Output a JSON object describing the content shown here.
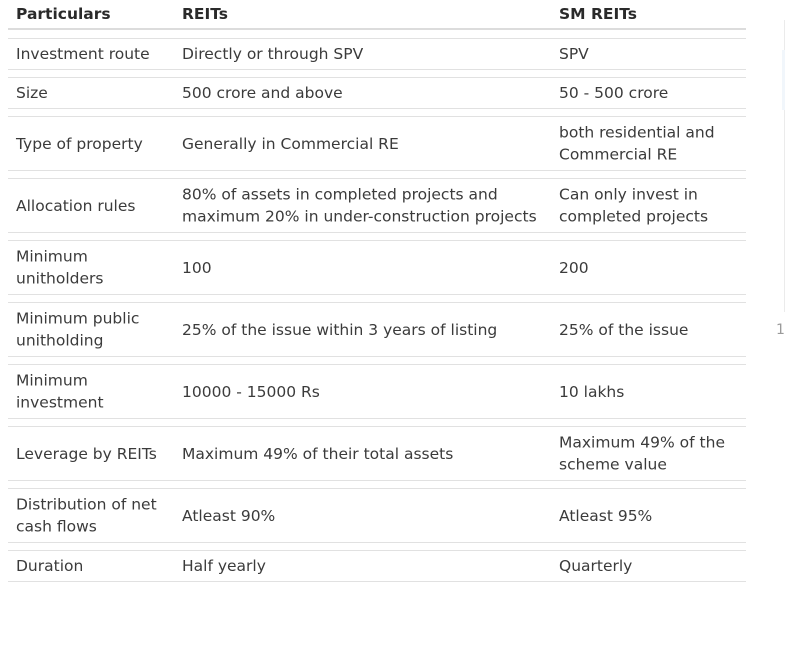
{
  "table": {
    "headers": [
      "Particulars",
      "REITs",
      "SM REITs"
    ],
    "rows": [
      {
        "particular": "Investment route",
        "reits": "Directly or through SPV",
        "sm_reits": "SPV"
      },
      {
        "particular": "Size",
        "reits": "500 crore and above",
        "sm_reits": "50 - 500 crore"
      },
      {
        "particular": "Type of property",
        "reits": "Generally in Commercial RE",
        "sm_reits": "both residential and\nCommercial RE"
      },
      {
        "particular": "Allocation rules",
        "reits": "80% of assets in completed projects and\nmaximum 20% in under-construction projects",
        "sm_reits": "Can only invest in\ncompleted projects"
      },
      {
        "particular": "Minimum\nunitholders",
        "reits": "100",
        "sm_reits": "200"
      },
      {
        "particular": "Minimum public\nunitholding",
        "reits": "25% of the issue within 3 years of listing",
        "sm_reits": "25% of the issue"
      },
      {
        "particular": "Minimum\ninvestment",
        "reits": "10000 - 15000 Rs",
        "sm_reits": "10 lakhs"
      },
      {
        "particular": "Leverage by REITs",
        "reits": "Maximum 49% of their total assets",
        "sm_reits": "Maximum 49% of the\nscheme value"
      },
      {
        "particular": "Distribution of net\ncash flows",
        "reits": "Atleast 90%",
        "sm_reits": "Atleast 95%"
      },
      {
        "particular": "Duration",
        "reits": "Half yearly",
        "sm_reits": "Quarterly"
      }
    ]
  },
  "page_marker": "1"
}
